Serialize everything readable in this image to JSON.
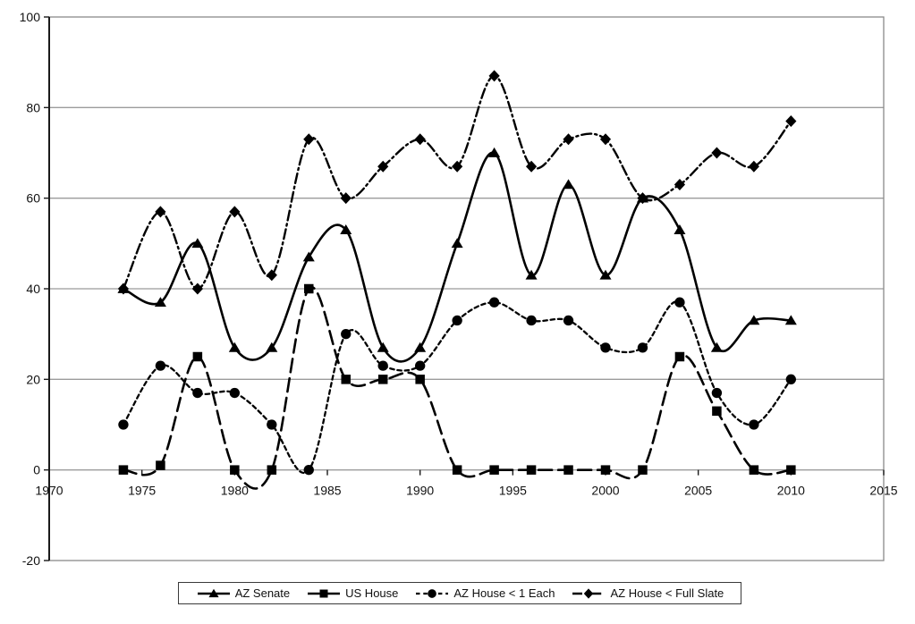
{
  "chart_data": {
    "type": "line",
    "title": "",
    "xlabel": "",
    "ylabel": "",
    "x": [
      1974,
      1976,
      1978,
      1980,
      1982,
      1984,
      1986,
      1988,
      1990,
      1992,
      1994,
      1996,
      1998,
      2000,
      2002,
      2004,
      2006,
      2008,
      2010
    ],
    "series": [
      {
        "name": "AZ Senate",
        "marker": "triangle",
        "line_style": "solid",
        "color": "#000000",
        "values": [
          40,
          37,
          50,
          27,
          27,
          47,
          53,
          27,
          27,
          50,
          70,
          43,
          63,
          43,
          60,
          53,
          27,
          33,
          33
        ]
      },
      {
        "name": "US House",
        "marker": "square",
        "line_style": "long-dash",
        "color": "#000000",
        "values": [
          0,
          1,
          25,
          0,
          0,
          40,
          20,
          20,
          20,
          0,
          0,
          0,
          0,
          0,
          0,
          25,
          13,
          0,
          0
        ]
      },
      {
        "name": "AZ House < 1 Each",
        "marker": "circle",
        "line_style": "short-dash",
        "color": "#000000",
        "values": [
          10,
          23,
          17,
          17,
          10,
          0,
          30,
          23,
          23,
          33,
          37,
          33,
          33,
          27,
          27,
          37,
          17,
          10,
          20
        ]
      },
      {
        "name": "AZ House < Full Slate",
        "marker": "diamond",
        "line_style": "dash-dot",
        "color": "#000000",
        "values": [
          40,
          57,
          40,
          57,
          43,
          73,
          60,
          67,
          73,
          67,
          87,
          67,
          73,
          73,
          60,
          63,
          70,
          67,
          77
        ]
      }
    ],
    "xlim": [
      1970,
      2015
    ],
    "ylim": [
      -20,
      100
    ],
    "x_ticks": [
      1970,
      1975,
      1980,
      1985,
      1990,
      1995,
      2000,
      2005,
      2010,
      2015
    ],
    "y_ticks": [
      100,
      80,
      60,
      40,
      20,
      0,
      -20
    ],
    "grid": "horizontal gridlines every 20 units",
    "legend_position": "bottom-center boxed",
    "gridline_color": "#9b9b9b",
    "border_color": "#8a8a8a",
    "axis_color": "#1a1a1a",
    "background_color": "#ffffff"
  }
}
